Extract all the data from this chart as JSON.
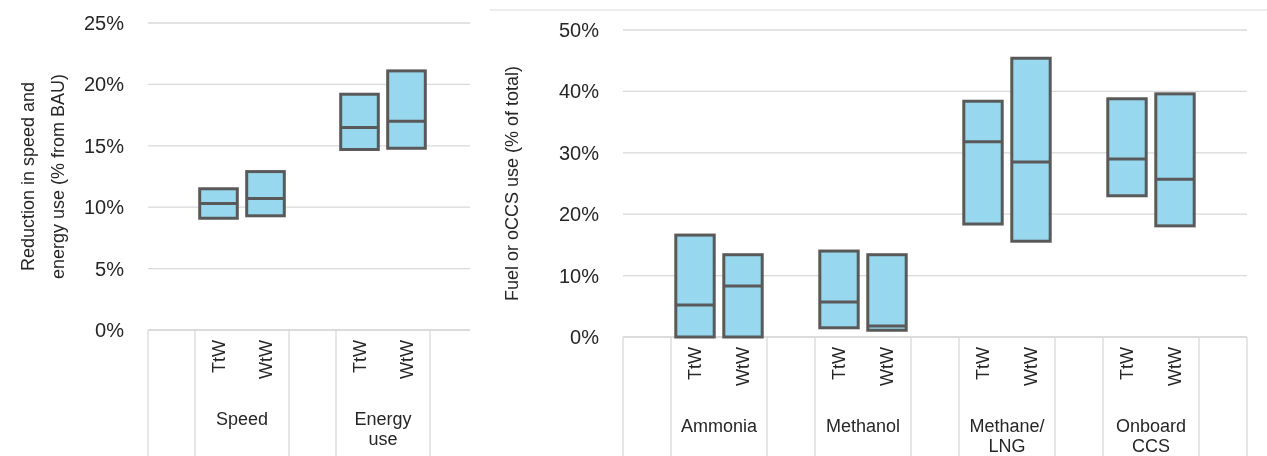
{
  "chart_data": [
    {
      "type": "box",
      "ylabel": "Reduction in speed and energy use (% from BAU)",
      "categories": [
        null,
        "TtW",
        "WtW",
        null,
        "TtW",
        "WtW",
        null
      ],
      "boxes": [
        null,
        {
          "low": 9.1,
          "q1": 9.1,
          "median": 10.3,
          "q3": 11.5,
          "high": 11.5
        },
        {
          "low": 9.3,
          "q1": 9.3,
          "median": 10.7,
          "q3": 12.9,
          "high": 12.9
        },
        null,
        {
          "low": 14.7,
          "q1": 14.7,
          "median": 16.5,
          "q3": 19.2,
          "high": 19.2
        },
        {
          "low": 14.8,
          "q1": 14.8,
          "median": 17.0,
          "q3": 21.1,
          "high": 21.1
        },
        null
      ],
      "color": "#98d8ee",
      "ylim": [
        0,
        25
      ],
      "yticks": [
        {
          "value": 0,
          "label": "0%"
        },
        {
          "value": 5,
          "label": "5%"
        },
        {
          "value": 10,
          "label": "10%"
        },
        {
          "value": 15,
          "label": "15%"
        },
        {
          "value": 20,
          "label": "20%"
        },
        {
          "value": 25,
          "label": "25%"
        }
      ],
      "grid": "y",
      "annotations": [
        "Speed",
        "Energy use"
      ]
    },
    {
      "type": "box",
      "ylabel": "Fuel or oCCS use (% of total)",
      "categories": [
        null,
        "TtW",
        "WtW",
        null,
        "TtW",
        "WtW",
        null,
        "TtW",
        "WtW",
        null,
        "TtW",
        "WtW",
        null
      ],
      "boxes": [
        null,
        {
          "low": 0,
          "q1": 0,
          "median": 5.2,
          "q3": 16.6,
          "high": 16.6
        },
        {
          "low": 0,
          "q1": 0,
          "median": 8.3,
          "q3": 13.4,
          "high": 13.4
        },
        null,
        {
          "low": 1.5,
          "q1": 1.5,
          "median": 5.7,
          "q3": 14.0,
          "high": 14.0
        },
        {
          "low": 1.1,
          "q1": 1.1,
          "median": 1.8,
          "q3": 13.4,
          "high": 13.4
        },
        null,
        {
          "low": 18.4,
          "q1": 18.4,
          "median": 31.8,
          "q3": 38.4,
          "high": 38.4
        },
        {
          "low": 15.6,
          "q1": 15.6,
          "median": 28.5,
          "q3": 45.4,
          "high": 45.4
        },
        null,
        {
          "low": 23.0,
          "q1": 23.0,
          "median": 29.0,
          "q3": 38.8,
          "high": 38.8
        },
        {
          "low": 18.1,
          "q1": 18.1,
          "median": 25.7,
          "q3": 39.6,
          "high": 39.6
        },
        null
      ],
      "color": "#98d8ee",
      "ylim": [
        0,
        50
      ],
      "yticks": [
        {
          "value": 0,
          "label": "0%"
        },
        {
          "value": 10,
          "label": "10%"
        },
        {
          "value": 20,
          "label": "20%"
        },
        {
          "value": 30,
          "label": "30%"
        },
        {
          "value": 40,
          "label": "40%"
        },
        {
          "value": 50,
          "label": "50%"
        }
      ],
      "grid": "y",
      "annotations": [
        "Ammonia",
        "Methanol",
        "Methane/ LNG",
        "Onboard CCS"
      ]
    }
  ]
}
